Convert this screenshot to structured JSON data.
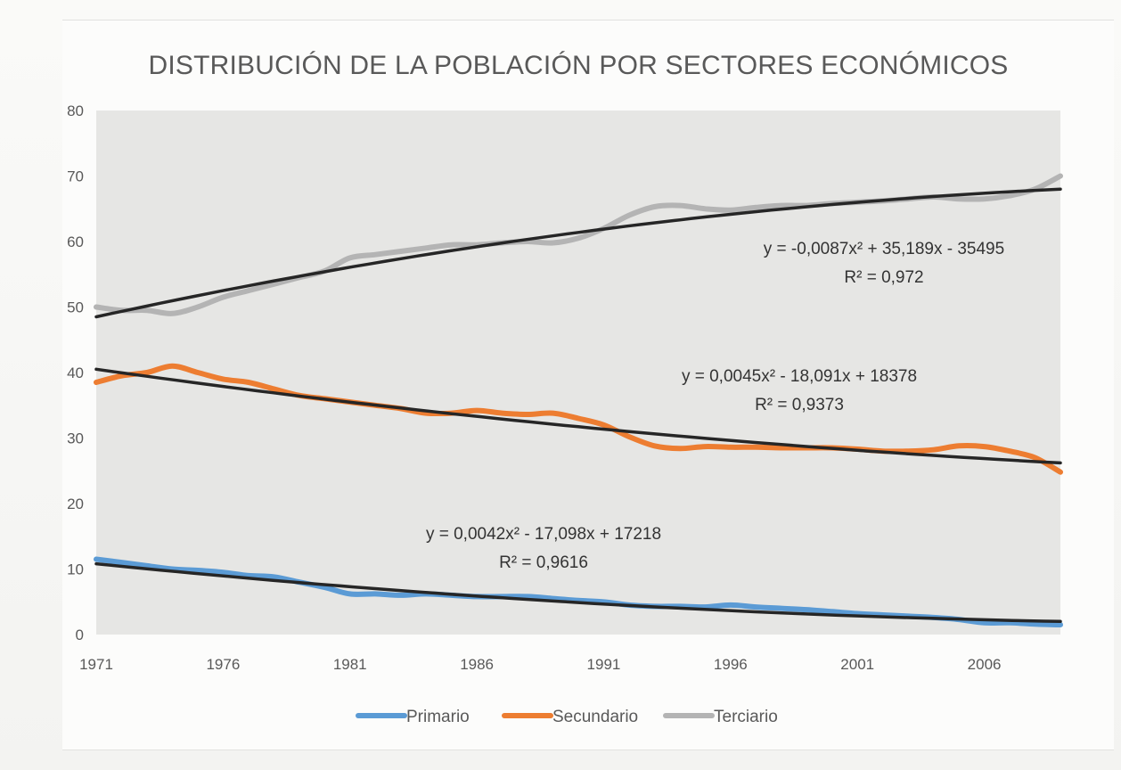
{
  "chart_data": {
    "type": "line",
    "title": "DISTRIBUCIÓN DE LA POBLACIÓN POR SECTORES ECONÓMICOS",
    "xlabel": "",
    "ylabel": "",
    "ylim": [
      0,
      80
    ],
    "xlim": [
      1971,
      2009
    ],
    "y_ticks": [
      "0",
      "10",
      "20",
      "30",
      "40",
      "50",
      "60",
      "70",
      "80"
    ],
    "x_ticks": [
      "1971",
      "1976",
      "1981",
      "1986",
      "1991",
      "1996",
      "2001",
      "2006"
    ],
    "grid": false,
    "legend_position": "bottom",
    "x": [
      1971,
      1972,
      1973,
      1974,
      1975,
      1976,
      1977,
      1978,
      1979,
      1980,
      1981,
      1982,
      1983,
      1984,
      1985,
      1986,
      1987,
      1988,
      1989,
      1990,
      1991,
      1992,
      1993,
      1994,
      1995,
      1996,
      1997,
      1998,
      1999,
      2000,
      2001,
      2002,
      2003,
      2004,
      2005,
      2006,
      2007,
      2008,
      2009
    ],
    "series": [
      {
        "name": "Primario",
        "color": "#5b9bd5",
        "values": [
          11.5,
          11.0,
          10.5,
          10.0,
          9.8,
          9.5,
          9.0,
          8.8,
          8.0,
          7.2,
          6.2,
          6.2,
          6.0,
          6.2,
          6.0,
          5.8,
          5.8,
          5.8,
          5.5,
          5.2,
          5.0,
          4.5,
          4.3,
          4.3,
          4.2,
          4.5,
          4.2,
          4.0,
          3.8,
          3.5,
          3.2,
          3.0,
          2.8,
          2.6,
          2.3,
          1.8,
          1.8,
          1.6,
          1.5
        ]
      },
      {
        "name": "Secundario",
        "color": "#ed7d31",
        "values": [
          38.5,
          39.5,
          40.0,
          41.0,
          40.0,
          39.0,
          38.5,
          37.5,
          36.5,
          36.0,
          35.5,
          35.0,
          34.5,
          33.8,
          33.8,
          34.2,
          33.8,
          33.6,
          33.8,
          33.0,
          32.0,
          30.2,
          28.8,
          28.4,
          28.7,
          28.6,
          28.6,
          28.5,
          28.5,
          28.5,
          28.3,
          28.0,
          28.0,
          28.2,
          28.8,
          28.7,
          28.0,
          27.0,
          24.8
        ]
      },
      {
        "name": "Terciario",
        "color": "#b4b4b4",
        "values": [
          50.0,
          49.5,
          49.5,
          49.0,
          50.0,
          51.5,
          52.5,
          53.5,
          54.5,
          55.5,
          57.5,
          58.0,
          58.5,
          59.0,
          59.5,
          59.5,
          59.8,
          60.0,
          59.8,
          60.5,
          62.0,
          64.0,
          65.3,
          65.5,
          65.0,
          64.8,
          65.2,
          65.5,
          65.5,
          65.8,
          66.0,
          66.2,
          66.5,
          66.8,
          66.5,
          66.5,
          67.0,
          68.0,
          70.0
        ]
      }
    ],
    "trendlines": [
      {
        "series": "Terciario",
        "equation": "y = -0,0087x² + 35,189x - 35495",
        "r2": "R² = 0,972",
        "coef": [
          -0.0087,
          35.189,
          -35495
        ],
        "start": 48.5,
        "end": 68.0
      },
      {
        "series": "Secundario",
        "equation": "y = 0,0045x² - 18,091x + 18378",
        "r2": "R² = 0,9373",
        "coef": [
          0.0045,
          -18.091,
          18378
        ],
        "start": 40.5,
        "end": 26.2
      },
      {
        "series": "Primario",
        "equation": "y = 0,0042x² - 17,098x + 17218",
        "r2": "R² = 0,9616",
        "coef": [
          0.0042,
          -17.098,
          17218
        ],
        "start": 10.8,
        "end": 2.0
      }
    ],
    "trendline_color": "#262626"
  }
}
